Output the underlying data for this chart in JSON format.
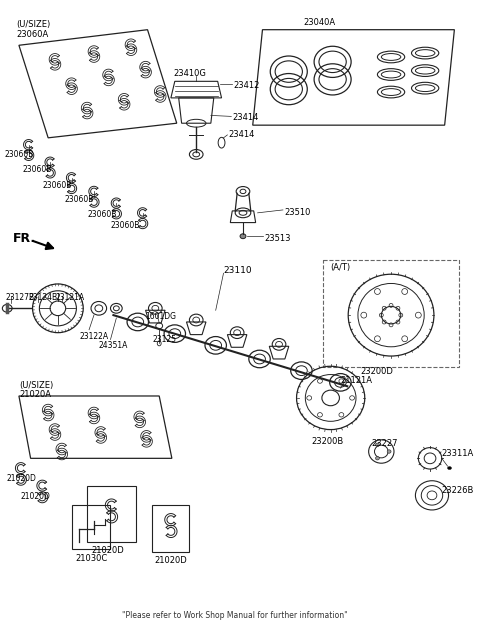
{
  "bg_color": "#ffffff",
  "lc": "#222222",
  "footer": "\"Please refer to Work Shop Manual for further information\"",
  "labels": {
    "usize_top": "(U/SIZE)",
    "23060A": "23060A",
    "23060B": "23060B",
    "23410G": "23410G",
    "23040A": "23040A",
    "23414": "23414",
    "23412": "23412",
    "FR": "FR.",
    "23510": "23510",
    "23513": "23513",
    "23127B": "23127B",
    "23124B": "23124B",
    "23121A": "23121A",
    "23110": "23110",
    "1601DG": "1601DG",
    "23125": "23125",
    "23122A": "23122A",
    "24351A": "24351A",
    "AT": "(A/T)",
    "23200D": "23200D",
    "usize_bot": "(U/SIZE)",
    "21020A": "21020A",
    "21020D": "21020D",
    "21030C": "21030C",
    "21121A": "21121A",
    "23200B": "23200B",
    "23227": "23227",
    "23311A": "23311A",
    "23226B": "23226B"
  }
}
